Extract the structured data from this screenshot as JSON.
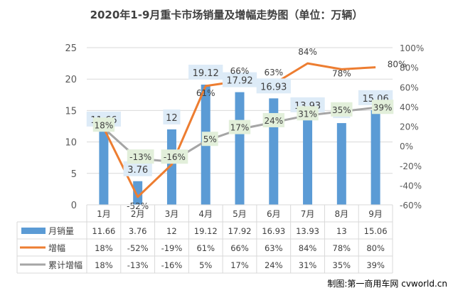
{
  "title": "2020年1-9月重卡市场销量及增幅走势图（单位：万辆）",
  "watermark": "制图:第一商用车网 cvworld.cn",
  "colors": {
    "bar": "#5b9bd5",
    "growth": "#ed7d31",
    "cumulative": "#a5a5a5",
    "label_box_bar": "#ddebf7",
    "label_box_cum": "#e2efda",
    "grid": "#d9d9d9"
  },
  "chart_data": {
    "type": "bar",
    "categories": [
      "1月",
      "2月",
      "3月",
      "4月",
      "5月",
      "6月",
      "7月",
      "8月",
      "9月"
    ],
    "ylim": [
      0,
      25
    ],
    "yticks": [
      "0",
      "5",
      "10",
      "15",
      "20",
      "25"
    ],
    "y2lim": [
      -60,
      100
    ],
    "y2ticks": [
      "-60%",
      "-40%",
      "-20%",
      "0%",
      "20%",
      "40%",
      "60%",
      "80%",
      "100%"
    ],
    "grid": true,
    "legend": "table-below",
    "series": [
      {
        "name": "月销量",
        "kind": "bar",
        "axis": "left",
        "values": [
          11.66,
          3.76,
          12,
          19.12,
          17.92,
          16.93,
          13.93,
          13,
          15.06
        ],
        "labels": [
          "11.66",
          "3.76",
          "12",
          "19.12",
          "17.92",
          "16.93",
          "13.93",
          "13",
          "15.06"
        ]
      },
      {
        "name": "增幅",
        "kind": "line",
        "axis": "right",
        "values": [
          18,
          -52,
          -19,
          61,
          66,
          63,
          84,
          78,
          80
        ],
        "labels": [
          "18%",
          "-52%",
          "-19%",
          "61%",
          "66%",
          "63%",
          "84%",
          "78%",
          "80%"
        ]
      },
      {
        "name": "累计增幅",
        "kind": "line",
        "axis": "right",
        "values": [
          18,
          -13,
          -16,
          5,
          17,
          24,
          31,
          35,
          39
        ],
        "labels": [
          "18%",
          "-13%",
          "-16%",
          "5%",
          "17%",
          "24%",
          "31%",
          "35%",
          "39%"
        ]
      }
    ]
  }
}
